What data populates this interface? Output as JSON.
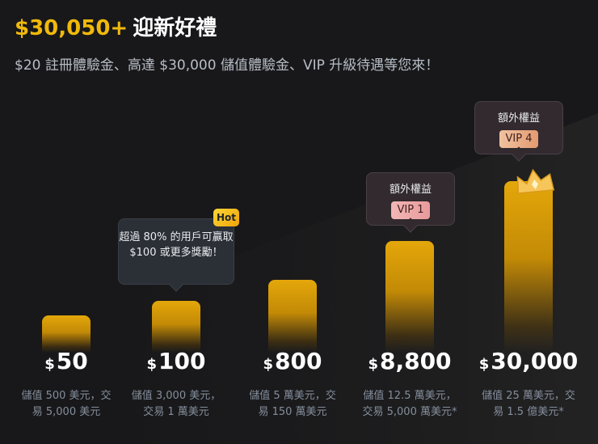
{
  "header": {
    "title_amount": "$30,050+",
    "title_text": "迎新好禮",
    "subtitle": "$20 註冊體驗金、高達 $30,000 儲值體驗金、VIP 升級待遇等您來！"
  },
  "tiers": [
    {
      "currency": "$",
      "value": "50",
      "desc": "儲值 500 美元，交易 5,000 美元"
    },
    {
      "currency": "$",
      "value": "100",
      "desc": "儲值 3,000 美元，交易 1 萬美元"
    },
    {
      "currency": "$",
      "value": "800",
      "desc": "儲值 5 萬美元，交易 150 萬美元"
    },
    {
      "currency": "$",
      "value": "8,800",
      "desc": "儲值 12.5 萬美元，交易 5,000 萬美元*"
    },
    {
      "currency": "$",
      "value": "30,000",
      "desc": "儲值 25 萬美元，交易 1.5 億美元*"
    }
  ],
  "hot_tooltip": {
    "badge": "Hot",
    "text": "超過 80% 的用戶可贏取 $100 或更多獎勵！"
  },
  "vip_tooltips": [
    {
      "perk": "額外權益",
      "badge": "VIP 1"
    },
    {
      "perk": "額外權益",
      "badge": "VIP 4"
    }
  ],
  "colors": {
    "background": "#18181a",
    "accent": "#f0b90b",
    "muted_text": "#848e9c"
  },
  "icons": {
    "crown": "crown-icon"
  }
}
